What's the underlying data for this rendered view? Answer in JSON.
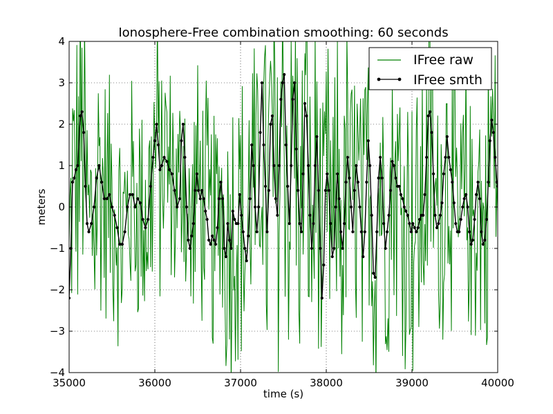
{
  "chart_data": {
    "type": "line",
    "title": "Ionosphere-Free combination smoothing: 60 seconds",
    "xlabel": "time (s)",
    "ylabel": "meters",
    "xlim": [
      35000,
      40000
    ],
    "ylim": [
      -4,
      4
    ],
    "xticks": [
      35000,
      36000,
      37000,
      38000,
      39000,
      40000
    ],
    "yticks": [
      -4,
      -3,
      -2,
      -1,
      0,
      1,
      2,
      3,
      4
    ],
    "xtick_labels": [
      "35000",
      "36000",
      "37000",
      "38000",
      "39000",
      "40000"
    ],
    "ytick_labels": [
      "−4",
      "−3",
      "−2",
      "−1",
      "0",
      "1",
      "2",
      "3",
      "4"
    ],
    "grid": true,
    "legend": "top-right",
    "sample_interval_s": 10,
    "series": [
      {
        "name": "IFree raw",
        "color": "#008000",
        "style": "line",
        "envelope": {
          "x": [
            35000,
            35200,
            35400,
            35600,
            35800,
            36000,
            36200,
            36400,
            36600,
            36800,
            37000,
            37200,
            37400,
            37600,
            37800,
            38000,
            38200,
            38400,
            38600,
            38800,
            39000,
            39200,
            39400,
            39600,
            39800,
            40000
          ],
          "amplitude": [
            3.6,
            3.8,
            3.2,
            2.6,
            2.8,
            3.2,
            2.6,
            2.8,
            3.0,
            3.0,
            3.4,
            3.8,
            4.2,
            4.2,
            3.8,
            3.4,
            3.6,
            3.6,
            3.2,
            3.2,
            3.6,
            3.4,
            3.2,
            3.0,
            3.4,
            3.4
          ]
        }
      },
      {
        "name": "IFree smth",
        "color": "#000000",
        "style": "line-marker",
        "points": [
          [
            35000,
            -2.2
          ],
          [
            35020,
            -1.0
          ],
          [
            35040,
            0.6
          ],
          [
            35060,
            0.7
          ],
          [
            35080,
            0.9
          ],
          [
            35100,
            1.0
          ],
          [
            35130,
            2.2
          ],
          [
            35150,
            2.3
          ],
          [
            35170,
            1.8
          ],
          [
            35190,
            0.5
          ],
          [
            35210,
            -0.4
          ],
          [
            35230,
            -0.6
          ],
          [
            35260,
            -0.4
          ],
          [
            35290,
            0.0
          ],
          [
            35320,
            0.7
          ],
          [
            35350,
            1.0
          ],
          [
            35380,
            0.6
          ],
          [
            35410,
            0.2
          ],
          [
            35440,
            0.2
          ],
          [
            35470,
            0.3
          ],
          [
            35500,
            0.0
          ],
          [
            35530,
            -0.2
          ],
          [
            35560,
            -0.5
          ],
          [
            35590,
            -0.9
          ],
          [
            35620,
            -0.9
          ],
          [
            35650,
            -0.6
          ],
          [
            35680,
            0.0
          ],
          [
            35710,
            0.3
          ],
          [
            35740,
            0.3
          ],
          [
            35770,
            0.0
          ],
          [
            35800,
            0.2
          ],
          [
            35830,
            0.1
          ],
          [
            35860,
            -0.3
          ],
          [
            35890,
            -0.5
          ],
          [
            35920,
            -0.3
          ],
          [
            35950,
            0.5
          ],
          [
            35980,
            1.2
          ],
          [
            36000,
            1.6
          ],
          [
            36020,
            2.0
          ],
          [
            36040,
            1.5
          ],
          [
            36060,
            0.9
          ],
          [
            36080,
            1.0
          ],
          [
            36110,
            1.2
          ],
          [
            36140,
            1.1
          ],
          [
            36170,
            0.9
          ],
          [
            36200,
            0.8
          ],
          [
            36230,
            0.4
          ],
          [
            36260,
            0.0
          ],
          [
            36290,
            0.2
          ],
          [
            36310,
            1.6
          ],
          [
            36330,
            2.0
          ],
          [
            36350,
            1.2
          ],
          [
            36370,
            0.0
          ],
          [
            36390,
            -0.8
          ],
          [
            36410,
            -1.0
          ],
          [
            36430,
            -0.7
          ],
          [
            36450,
            -0.4
          ],
          [
            36470,
            0.4
          ],
          [
            36490,
            0.8
          ],
          [
            36510,
            0.4
          ],
          [
            36530,
            0.2
          ],
          [
            36550,
            0.4
          ],
          [
            36570,
            0.2
          ],
          [
            36590,
            -0.1
          ],
          [
            36610,
            -0.3
          ],
          [
            36630,
            -0.8
          ],
          [
            36650,
            -0.9
          ],
          [
            36670,
            -0.7
          ],
          [
            36690,
            -0.8
          ],
          [
            36710,
            -0.9
          ],
          [
            36730,
            -0.5
          ],
          [
            36750,
            0.2
          ],
          [
            36770,
            0.6
          ],
          [
            36790,
            0.2
          ],
          [
            36810,
            -1.0
          ],
          [
            36830,
            -1.2
          ],
          [
            36850,
            -0.4
          ],
          [
            36870,
            -0.8
          ],
          [
            36890,
            -1.0
          ],
          [
            36910,
            -0.1
          ],
          [
            36930,
            -0.3
          ],
          [
            36950,
            -0.4
          ],
          [
            36970,
            -0.4
          ],
          [
            36990,
            0.3
          ],
          [
            37010,
            -0.2
          ],
          [
            37030,
            -0.6
          ],
          [
            37050,
            -1.0
          ],
          [
            37070,
            -1.3
          ],
          [
            37090,
            -0.7
          ],
          [
            37110,
            0.2
          ],
          [
            37130,
            1.5
          ],
          [
            37150,
            1.0
          ],
          [
            37170,
            0.0
          ],
          [
            37190,
            -0.6
          ],
          [
            37210,
            0.0
          ],
          [
            37230,
            1.8
          ],
          [
            37250,
            3.0
          ],
          [
            37270,
            1.5
          ],
          [
            37290,
            0.5
          ],
          [
            37310,
            -0.6
          ],
          [
            37330,
            0.4
          ],
          [
            37350,
            2.0
          ],
          [
            37370,
            2.2
          ],
          [
            37390,
            1.0
          ],
          [
            37410,
            0.2
          ],
          [
            37430,
            -0.2
          ],
          [
            37450,
            1.0
          ],
          [
            37470,
            2.6
          ],
          [
            37490,
            3.0
          ],
          [
            37510,
            3.2
          ],
          [
            37530,
            1.5
          ],
          [
            37550,
            0.5
          ],
          [
            37570,
            -0.4
          ],
          [
            37590,
            1.0
          ],
          [
            37610,
            2.6
          ],
          [
            37630,
            3.0
          ],
          [
            37650,
            1.4
          ],
          [
            37670,
            0.4
          ],
          [
            37690,
            -0.4
          ],
          [
            37710,
            -0.6
          ],
          [
            37730,
            0.8
          ],
          [
            37750,
            2.5
          ],
          [
            37770,
            2.2
          ],
          [
            37790,
            1.0
          ],
          [
            37810,
            -0.2
          ],
          [
            37830,
            -1.0
          ],
          [
            37850,
            -0.4
          ],
          [
            37870,
            1.0
          ],
          [
            37890,
            1.7
          ],
          [
            37910,
            0.4
          ],
          [
            37930,
            -1.0
          ],
          [
            37950,
            -2.2
          ],
          [
            37970,
            -1.4
          ],
          [
            37990,
            0.4
          ],
          [
            38010,
            0.8
          ],
          [
            38030,
            0.4
          ],
          [
            38050,
            -0.4
          ],
          [
            38070,
            -1.2
          ],
          [
            38090,
            -1.0
          ],
          [
            38110,
            0.0
          ],
          [
            38130,
            0.8
          ],
          [
            38150,
            0.2
          ],
          [
            38170,
            -0.6
          ],
          [
            38190,
            -1.0
          ],
          [
            38210,
            -0.4
          ],
          [
            38230,
            0.6
          ],
          [
            38250,
            1.2
          ],
          [
            38270,
            0.7
          ],
          [
            38290,
            0.0
          ],
          [
            38310,
            -0.6
          ],
          [
            38330,
            0.4
          ],
          [
            38350,
            1.0
          ],
          [
            38370,
            0.6
          ],
          [
            38390,
            0.0
          ],
          [
            38410,
            -0.6
          ],
          [
            38430,
            -1.2
          ],
          [
            38450,
            -0.6
          ],
          [
            38470,
            0.6
          ],
          [
            38490,
            1.6
          ],
          [
            38510,
            1.0
          ],
          [
            38530,
            -0.2
          ],
          [
            38550,
            -1.6
          ],
          [
            38570,
            -1.7
          ],
          [
            38590,
            -0.6
          ],
          [
            38610,
            0.7
          ],
          [
            38630,
            1.2
          ],
          [
            38650,
            0.7
          ],
          [
            38670,
            -0.4
          ],
          [
            38690,
            -1.0
          ],
          [
            38710,
            -0.6
          ],
          [
            38730,
            -0.2
          ],
          [
            38750,
            0.4
          ],
          [
            38770,
            1.1
          ],
          [
            38790,
            1.0
          ],
          [
            38810,
            0.7
          ],
          [
            38830,
            0.5
          ],
          [
            38850,
            0.5
          ],
          [
            38870,
            0.3
          ],
          [
            38890,
            0.2
          ],
          [
            38910,
            0.0
          ],
          [
            38930,
            -0.1
          ],
          [
            38950,
            -0.2
          ],
          [
            38970,
            -0.4
          ],
          [
            38990,
            -0.6
          ],
          [
            39010,
            -0.4
          ],
          [
            39030,
            -0.5
          ],
          [
            39050,
            -0.6
          ],
          [
            39070,
            -0.5
          ],
          [
            39090,
            -0.3
          ],
          [
            39110,
            -0.2
          ],
          [
            39130,
            -0.2
          ],
          [
            39150,
            0.3
          ],
          [
            39170,
            1.2
          ],
          [
            39190,
            2.2
          ],
          [
            39210,
            2.3
          ],
          [
            39230,
            1.8
          ],
          [
            39250,
            0.8
          ],
          [
            39270,
            -0.2
          ],
          [
            39290,
            -0.5
          ],
          [
            39310,
            -0.4
          ],
          [
            39330,
            -0.2
          ],
          [
            39350,
            0.1
          ],
          [
            39370,
            0.8
          ],
          [
            39390,
            1.2
          ],
          [
            39410,
            1.7
          ],
          [
            39430,
            1.2
          ],
          [
            39450,
            0.9
          ],
          [
            39470,
            0.6
          ],
          [
            39490,
            0.1
          ],
          [
            39510,
            -0.4
          ],
          [
            39530,
            -0.6
          ],
          [
            39550,
            -0.6
          ],
          [
            39570,
            -0.3
          ],
          [
            39590,
            0.0
          ],
          [
            39610,
            0.2
          ],
          [
            39630,
            0.3
          ],
          [
            39650,
            0.0
          ],
          [
            39670,
            -0.6
          ],
          [
            39690,
            -0.9
          ],
          [
            39710,
            -0.8
          ],
          [
            39730,
            -0.3
          ],
          [
            39750,
            0.3
          ],
          [
            39770,
            0.6
          ],
          [
            39790,
            0.2
          ],
          [
            39810,
            -0.6
          ],
          [
            39830,
            -0.9
          ],
          [
            39850,
            -0.8
          ],
          [
            39870,
            -0.3
          ],
          [
            39890,
            0.6
          ],
          [
            39910,
            1.6
          ],
          [
            39930,
            2.1
          ],
          [
            39950,
            1.8
          ],
          [
            39970,
            1.2
          ],
          [
            39990,
            0.6
          ],
          [
            40000,
            0.5
          ]
        ]
      }
    ]
  }
}
